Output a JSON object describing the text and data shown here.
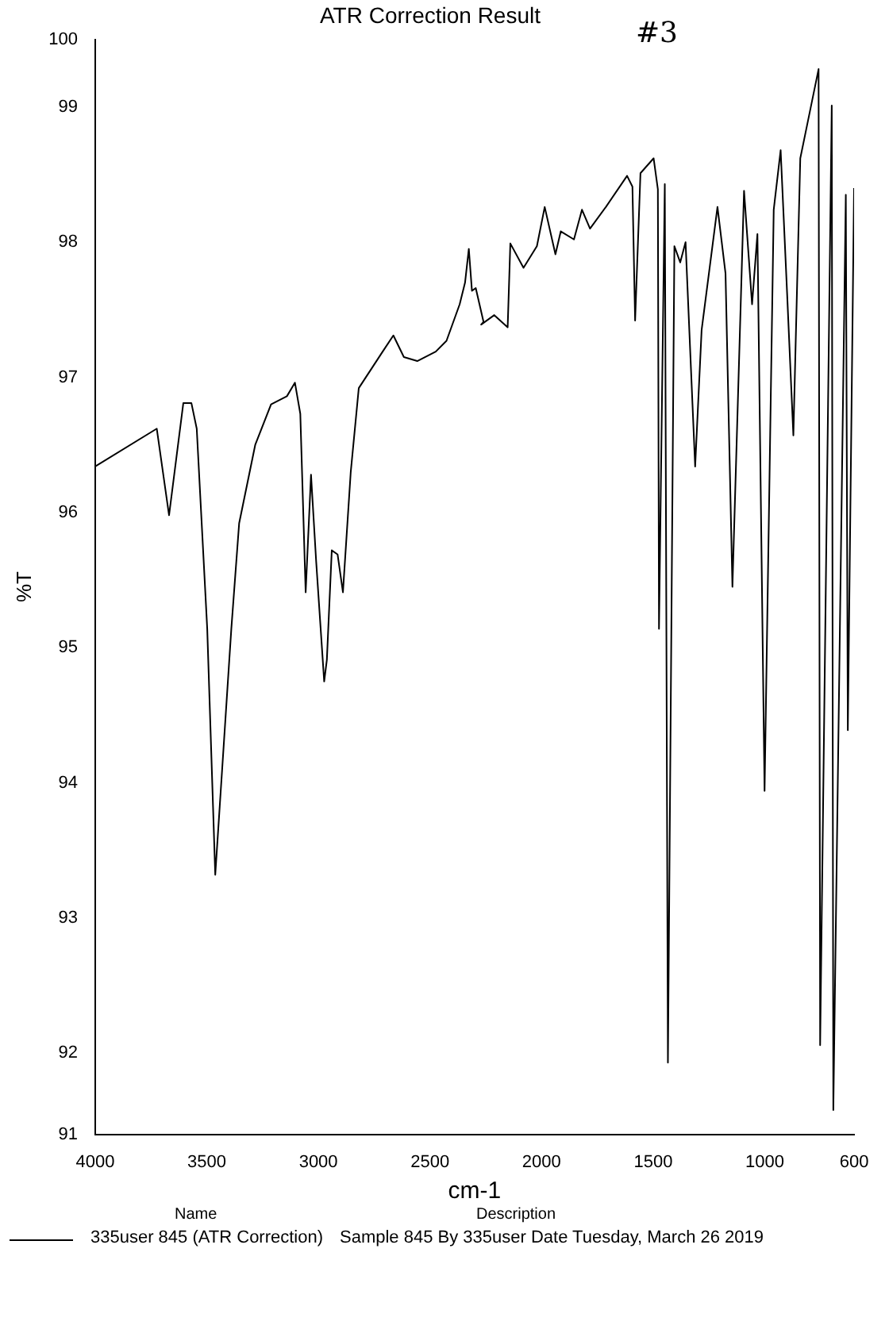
{
  "chart_data": {
    "type": "line",
    "title": "ATR Correction Result",
    "xlabel": "cm-1",
    "ylabel": "%T",
    "annotations": [
      "#3",
      "Name",
      "Description",
      "Sample 845 By 335user Date Tuesday, March 26 2019"
    ],
    "xlim": [
      4000,
      600
    ],
    "xticks": [
      4000,
      3500,
      3000,
      2500,
      2000,
      1500,
      1000,
      600
    ],
    "ylim": [
      91.4,
      99.5
    ],
    "yticks": [
      {
        "value": 91.4,
        "label": "91"
      },
      92,
      93,
      94,
      95,
      96,
      97,
      98,
      99,
      {
        "value": 99.5,
        "label": "100"
      }
    ],
    "grid": false,
    "legend": "bottom",
    "marker": "none",
    "line_style": "solid",
    "x": [
      4000,
      3724,
      3669,
      3605,
      3569,
      3545,
      3498,
      3462,
      3390,
      3355,
      3283,
      3212,
      3141,
      3105,
      3081,
      3057,
      3033,
      3010,
      2974,
      2962,
      2940,
      2914,
      2890,
      2855,
      2819,
      2712,
      2664,
      2617,
      2557,
      2474,
      2426,
      2367,
      2343,
      2326,
      2312,
      2295,
      2260,
      2271,
      2212,
      2152,
      2140,
      2081,
      2021,
      1986,
      1938,
      1914,
      1855,
      1819,
      1783,
      1712,
      1617,
      1593,
      1581,
      1557,
      1498,
      1479,
      1474,
      1448,
      1434,
      1405,
      1379,
      1355,
      1312,
      1283,
      1212,
      1176,
      1145,
      1093,
      1057,
      1033,
      1001,
      960,
      929,
      900,
      872,
      841,
      759,
      752,
      700,
      693,
      637,
      628,
      600
    ],
    "series": [
      {
        "name": "335user 845 (ATR Correction)",
        "color": "#000000",
        "values": [
          96.34,
          96.62,
          95.98,
          96.81,
          96.81,
          96.62,
          95.14,
          93.32,
          95.14,
          95.92,
          96.5,
          96.8,
          96.86,
          96.96,
          96.73,
          95.41,
          96.28,
          95.64,
          94.75,
          94.91,
          95.72,
          95.69,
          95.41,
          96.3,
          96.92,
          97.19,
          97.31,
          97.15,
          97.12,
          97.19,
          97.27,
          97.54,
          97.7,
          97.95,
          97.64,
          97.66,
          97.41,
          97.39,
          97.46,
          97.37,
          97.99,
          97.81,
          97.97,
          98.26,
          97.91,
          98.08,
          98.02,
          98.24,
          98.1,
          98.26,
          98.49,
          98.41,
          97.42,
          98.51,
          98.62,
          98.39,
          95.14,
          98.43,
          91.93,
          97.97,
          97.85,
          98.0,
          96.34,
          97.35,
          98.26,
          97.77,
          95.45,
          98.38,
          97.54,
          98.06,
          93.94,
          98.24,
          98.68,
          97.62,
          96.57,
          98.62,
          99.28,
          92.06,
          99.01,
          91.58,
          98.35,
          94.39,
          98.4
        ]
      }
    ]
  }
}
